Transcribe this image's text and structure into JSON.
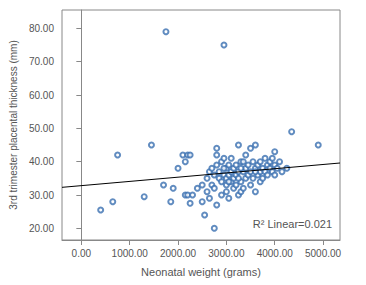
{
  "chart_data": {
    "type": "scatter",
    "x_label": "Neonatal weight (grams)",
    "y_label": "3rd trimester placental thickness (mm)",
    "annotation": "R² Linear=0.021",
    "color": "#3a6fb0",
    "marker": "circle",
    "grid": false,
    "xlim": [
      -400,
      5350
    ],
    "ylim": [
      16.5,
      85.5
    ],
    "xticks": [
      {
        "value": 0,
        "label": "0.00"
      },
      {
        "value": 1000,
        "label": "1000.00"
      },
      {
        "value": 2000,
        "label": "2000.00"
      },
      {
        "value": 3000,
        "label": "3000.00"
      },
      {
        "value": 4000,
        "label": "4000.00"
      },
      {
        "value": 5000,
        "label": "5000.00"
      }
    ],
    "yticks": [
      {
        "value": 20,
        "label": "20.00"
      },
      {
        "value": 30,
        "label": "30.00"
      },
      {
        "value": 40,
        "label": "40.00"
      },
      {
        "value": 50,
        "label": "50.00"
      },
      {
        "value": 60,
        "label": "60.00"
      },
      {
        "value": 70,
        "label": "70.00"
      },
      {
        "value": 80,
        "label": "80.00"
      }
    ],
    "x": [
      400,
      650,
      750,
      1300,
      1450,
      1700,
      1750,
      1850,
      1900,
      2000,
      2100,
      2150,
      2200,
      2250,
      2150,
      2200,
      2250,
      2300,
      2400,
      2500,
      2500,
      2550,
      2600,
      2600,
      2650,
      2650,
      2700,
      2700,
      2750,
      2750,
      2750,
      2800,
      2800,
      2800,
      2800,
      2850,
      2850,
      2900,
      2900,
      2900,
      2950,
      2950,
      2950,
      3000,
      3000,
      3000,
      3000,
      3050,
      3050,
      3050,
      3100,
      3100,
      3100,
      3150,
      3150,
      3150,
      3200,
      3200,
      3200,
      3250,
      3250,
      3250,
      3300,
      3300,
      3300,
      3350,
      3350,
      3400,
      3400,
      3400,
      3450,
      3450,
      3500,
      3500,
      3500,
      3550,
      3550,
      3600,
      3600,
      3600,
      3650,
      3650,
      3700,
      3700,
      3700,
      3750,
      3750,
      3800,
      3800,
      3850,
      3850,
      3900,
      3900,
      3950,
      3950,
      4000,
      4000,
      4000,
      4050,
      4100,
      4150,
      4250,
      4350,
      4900,
      3300,
      3350,
      2950,
      3050,
      3600,
      3250
    ],
    "values": [
      25.5,
      28,
      42,
      29.5,
      45,
      33,
      79,
      28,
      32,
      38,
      42,
      40,
      42,
      42,
      30,
      30,
      27.5,
      30,
      32,
      28,
      33,
      24,
      35,
      31,
      37,
      29,
      33,
      38,
      32,
      20,
      36,
      27,
      42,
      39,
      44,
      35,
      37,
      40,
      30,
      34,
      75,
      36,
      41,
      38,
      35,
      31,
      33,
      39,
      29,
      36,
      41,
      34,
      37,
      38,
      32,
      35,
      33,
      36,
      39,
      45,
      30,
      37,
      40,
      34,
      31,
      37,
      32,
      42,
      38,
      35,
      36,
      39,
      44,
      33,
      37,
      35,
      40,
      45,
      38,
      31,
      39,
      36,
      40,
      37,
      34,
      38,
      35,
      41,
      37,
      39,
      36,
      40,
      38,
      41,
      37,
      43,
      39,
      36,
      38,
      40,
      37,
      38,
      49,
      45,
      38,
      40,
      38,
      34,
      37,
      35
    ],
    "trend_line": {
      "x": [
        -400,
        5350
      ],
      "y": [
        32.3,
        39.6
      ],
      "color": "#000000"
    }
  }
}
